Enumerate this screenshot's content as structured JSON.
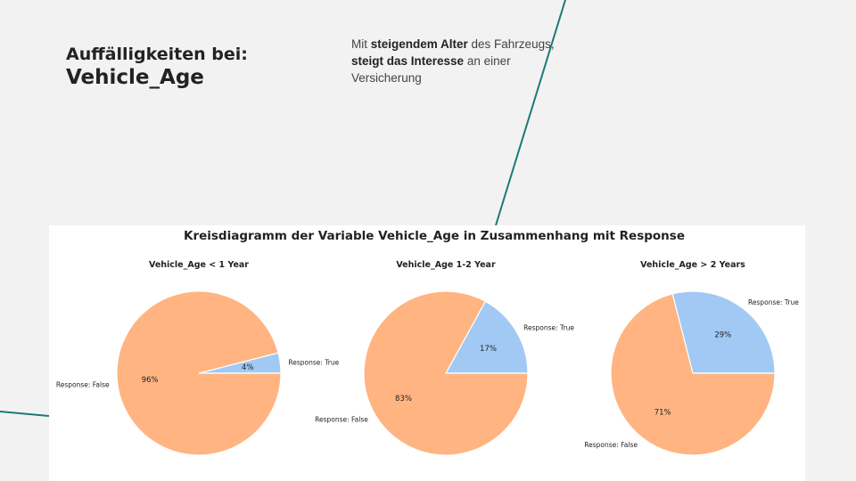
{
  "slide": {
    "heading_line1": "Auffälligkeiten bei:",
    "heading_line2": "Vehicle_Age",
    "note": {
      "p1": "Mit ",
      "b1": "steigendem Alter",
      "p2": " des Fahrzeugs, ",
      "b2": "steigt das Interesse",
      "p3": " an einer Versicherung"
    }
  },
  "colors": {
    "false": "#ffb482",
    "true": "#a1c9f4",
    "accent_line": "#1a7a78"
  },
  "chart_data": {
    "type": "pie",
    "title": "Kreisdiagramm der Variable Vehicle_Age in Zusammenhang mit Response",
    "pies": [
      {
        "title": "Vehicle_Age < 1 Year",
        "slices": [
          {
            "label": "Response: True",
            "value": 4,
            "pct_label": "4%"
          },
          {
            "label": "Response: False",
            "value": 96,
            "pct_label": "96%"
          }
        ]
      },
      {
        "title": "Vehicle_Age 1-2 Year",
        "slices": [
          {
            "label": "Response: True",
            "value": 17,
            "pct_label": "17%"
          },
          {
            "label": "Response: False",
            "value": 83,
            "pct_label": "83%"
          }
        ]
      },
      {
        "title": "Vehicle_Age > 2 Years",
        "slices": [
          {
            "label": "Response: True",
            "value": 29,
            "pct_label": "29%"
          },
          {
            "label": "Response: False",
            "value": 71,
            "pct_label": "71%"
          }
        ]
      }
    ]
  }
}
